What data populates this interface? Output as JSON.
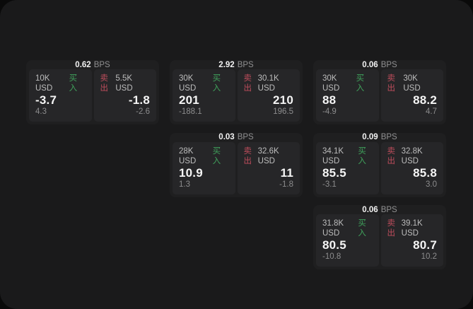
{
  "labels": {
    "buy": "买入",
    "sell": "卖出",
    "bps_unit": "BPS"
  },
  "colors": {
    "backdrop": "#0a0a0a",
    "surface": "#1a1a1b",
    "card": "#1f1f20",
    "panel": "#262628",
    "buy_green": "#40a35c",
    "sell_red": "#bf4d5c"
  },
  "cards": [
    {
      "bps": "0.62",
      "buy": {
        "amount": "10K USD",
        "price": "-3.7",
        "delta": "4.3"
      },
      "sell": {
        "amount": "5.5K USD",
        "price": "-1.8",
        "delta": "-2.6"
      }
    },
    {
      "bps": "2.92",
      "buy": {
        "amount": "30K USD",
        "price": "201",
        "delta": "-188.1"
      },
      "sell": {
        "amount": "30.1K USD",
        "price": "210",
        "delta": "196.5"
      }
    },
    {
      "bps": "0.06",
      "buy": {
        "amount": "30K USD",
        "price": "88",
        "delta": "-4.9"
      },
      "sell": {
        "amount": "30K USD",
        "price": "88.2",
        "delta": "4.7"
      }
    },
    {
      "bps": "0.03",
      "buy": {
        "amount": "28K USD",
        "price": "10.9",
        "delta": "1.3"
      },
      "sell": {
        "amount": "32.6K USD",
        "price": "11",
        "delta": "-1.8"
      }
    },
    {
      "bps": "0.09",
      "buy": {
        "amount": "34.1K USD",
        "price": "85.5",
        "delta": "-3.1"
      },
      "sell": {
        "amount": "32.8K USD",
        "price": "85.8",
        "delta": "3.0"
      }
    },
    {
      "bps": "0.06",
      "buy": {
        "amount": "31.8K USD",
        "price": "80.5",
        "delta": "-10.8"
      },
      "sell": {
        "amount": "39.1K USD",
        "price": "80.7",
        "delta": "10.2"
      }
    }
  ]
}
